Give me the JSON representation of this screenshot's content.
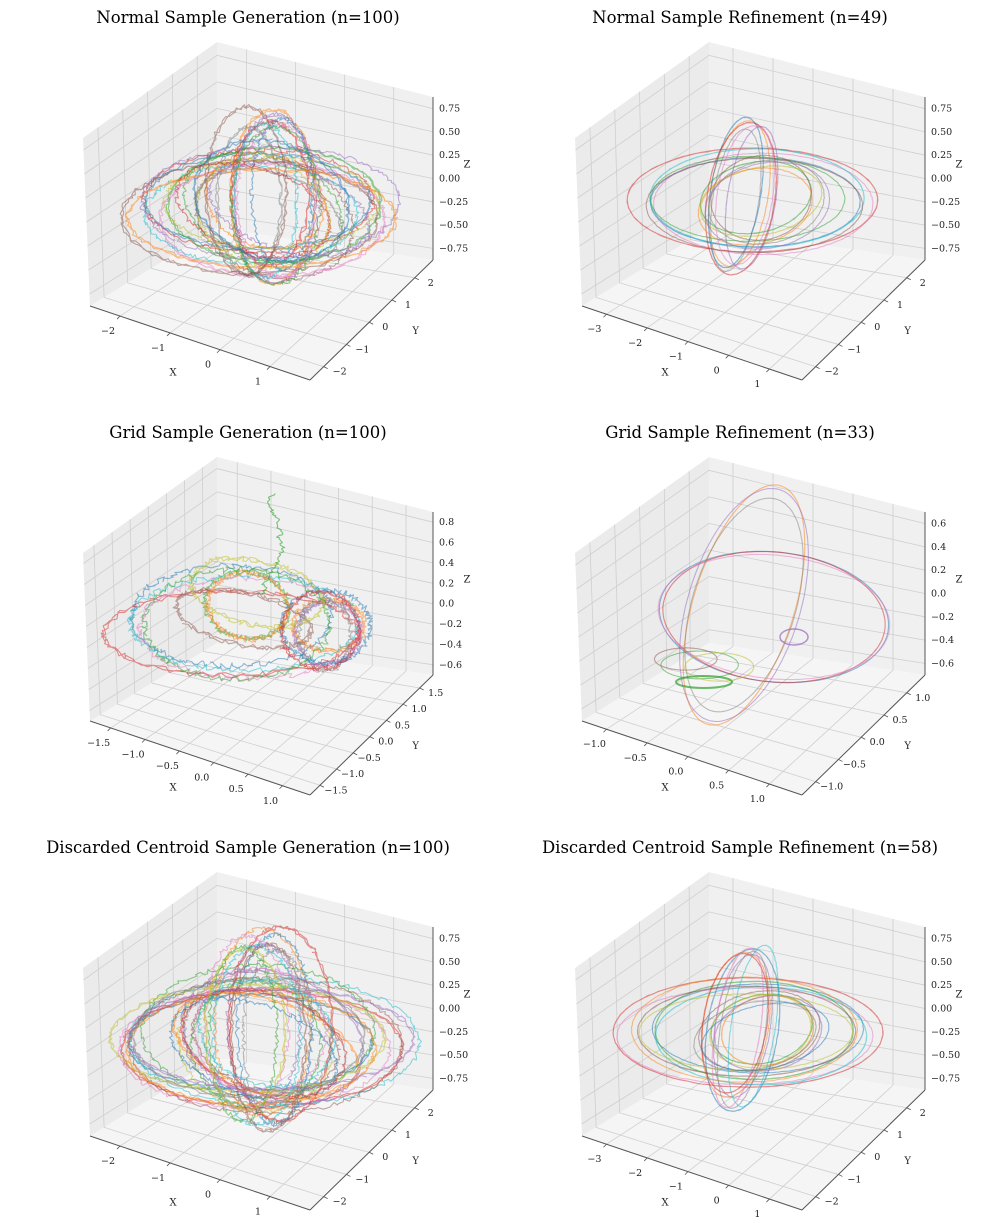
{
  "chart_data": [
    {
      "type": "line3d",
      "title": "Normal Sample Generation (n=100)",
      "xlabel": "X",
      "ylabel": "Y",
      "zlabel": "Z",
      "xticks": [
        "−2",
        "−1",
        "0",
        "1"
      ],
      "yticks": [
        "−2",
        "−1",
        "0",
        "1",
        "2"
      ],
      "zticks": [
        "−0.75",
        "−0.50",
        "−0.25",
        "0.00",
        "0.25",
        "0.50",
        "0.75"
      ],
      "xlim": [
        -2.6,
        1.9
      ],
      "ylim": [
        -2.4,
        2.4
      ],
      "zlim": [
        -0.95,
        0.95
      ],
      "style": "normal-gen",
      "trajectories": 26
    },
    {
      "type": "line3d",
      "title": "Normal Sample Refinement (n=49)",
      "xlabel": "X",
      "ylabel": "Y",
      "zlabel": "Z",
      "xticks": [
        "−3",
        "−2",
        "−1",
        "0",
        "1"
      ],
      "yticks": [
        "−2",
        "−1",
        "0",
        "1",
        "2"
      ],
      "zticks": [
        "−0.75",
        "−0.50",
        "−0.25",
        "0.00",
        "0.25",
        "0.50",
        "0.75"
      ],
      "xlim": [
        -3.0,
        1.9
      ],
      "ylim": [
        -2.4,
        2.4
      ],
      "zlim": [
        -0.95,
        0.95
      ],
      "style": "normal-ref",
      "trajectories": 18
    },
    {
      "type": "line3d",
      "title": "Grid Sample Generation (n=100)",
      "xlabel": "X",
      "ylabel": "Y",
      "zlabel": "Z",
      "xticks": [
        "−1.5",
        "−1.0",
        "−0.5",
        "0.0",
        "0.5",
        "1.0"
      ],
      "yticks": [
        "−1.5",
        "−1.0",
        "−0.5",
        "0.0",
        "0.5",
        "1.0",
        "1.5"
      ],
      "zticks": [
        "−0.6",
        "−0.4",
        "−0.2",
        "0.0",
        "0.2",
        "0.4",
        "0.6",
        "0.8"
      ],
      "xlim": [
        -1.7,
        1.5
      ],
      "ylim": [
        -1.6,
        1.6
      ],
      "zlim": [
        -0.7,
        0.95
      ],
      "style": "grid-gen",
      "trajectories": 14
    },
    {
      "type": "line3d",
      "title": "Grid Sample Refinement (n=33)",
      "xlabel": "X",
      "ylabel": "Y",
      "zlabel": "Z",
      "xticks": [
        "−1.0",
        "−0.5",
        "0.0",
        "0.5",
        "1.0"
      ],
      "yticks": [
        "−1.0",
        "−0.5",
        "0.0",
        "0.5",
        "1.0"
      ],
      "zticks": [
        "−0.6",
        "−0.4",
        "−0.2",
        "0.0",
        "0.2",
        "0.4",
        "0.6"
      ],
      "xlim": [
        -1.1,
        1.5
      ],
      "ylim": [
        -1.2,
        1.3
      ],
      "zlim": [
        -0.7,
        0.7
      ],
      "style": "grid-ref",
      "trajectories": 9
    },
    {
      "type": "line3d",
      "title": "Discarded Centroid Sample Generation (n=100)",
      "xlabel": "X",
      "ylabel": "Y",
      "zlabel": "Z",
      "xticks": [
        "−2",
        "−1",
        "0",
        "1"
      ],
      "yticks": [
        "−2",
        "−1",
        "0",
        "1",
        "2"
      ],
      "zticks": [
        "−0.75",
        "−0.50",
        "−0.25",
        "0.00",
        "0.25",
        "0.50",
        "0.75"
      ],
      "xlim": [
        -2.6,
        1.9
      ],
      "ylim": [
        -2.4,
        2.4
      ],
      "zlim": [
        -0.95,
        0.95
      ],
      "style": "dc-gen",
      "trajectories": 30
    },
    {
      "type": "line3d",
      "title": "Discarded Centroid Sample Refinement (n=58)",
      "xlabel": "X",
      "ylabel": "Y",
      "zlabel": "Z",
      "xticks": [
        "−3",
        "−2",
        "−1",
        "0",
        "1"
      ],
      "yticks": [
        "−2",
        "−1",
        "0",
        "1",
        "2"
      ],
      "zticks": [
        "−0.75",
        "−0.50",
        "−0.25",
        "0.00",
        "0.25",
        "0.50",
        "0.75"
      ],
      "xlim": [
        -3.0,
        1.9
      ],
      "ylim": [
        -2.4,
        2.4
      ],
      "zlim": [
        -0.95,
        0.95
      ],
      "style": "dc-ref",
      "trajectories": 22
    }
  ],
  "palette": [
    "#1f77b4",
    "#ff7f0e",
    "#2ca02c",
    "#d62728",
    "#9467bd",
    "#8c564b",
    "#e377c2",
    "#7f7f7f",
    "#bcbd22",
    "#17becf"
  ],
  "pane_colors": {
    "left": "#ebebeb",
    "right": "#f0f0f0",
    "floor": "#f5f5f5",
    "grid": "#cfcfcf",
    "axis": "#555555"
  }
}
